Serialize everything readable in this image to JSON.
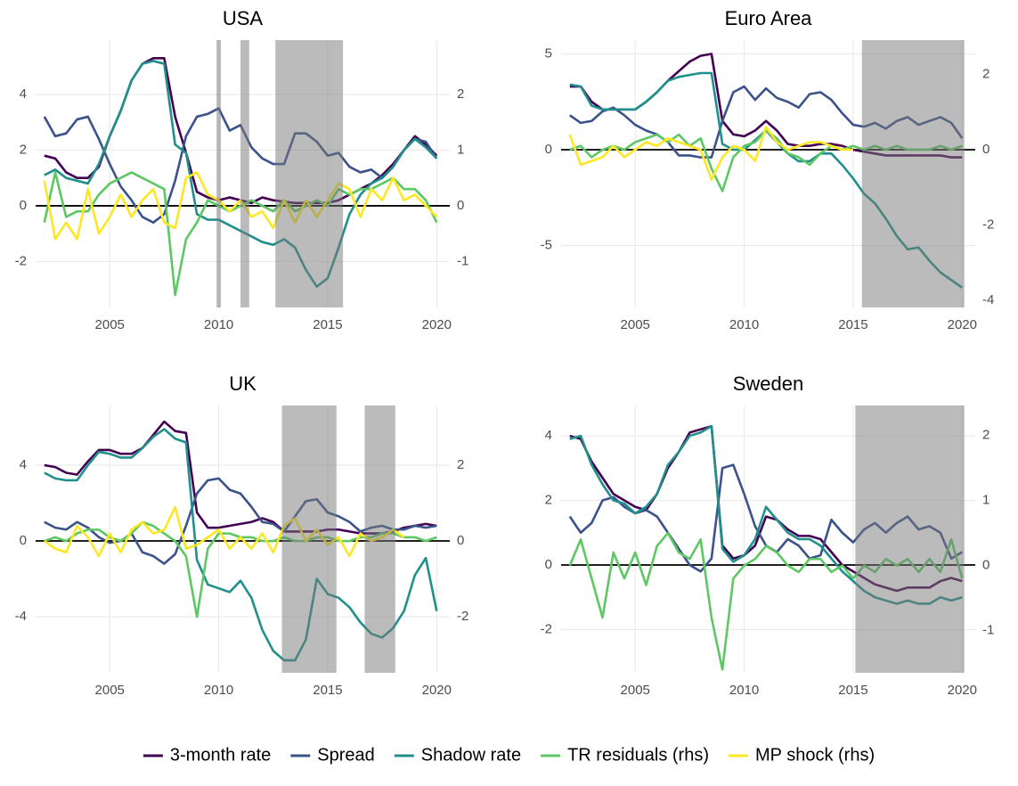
{
  "chart_data": [
    {
      "type": "line",
      "title": "USA",
      "x": [
        2002,
        2002.5,
        2003,
        2003.5,
        2004,
        2004.5,
        2005,
        2005.5,
        2006,
        2006.5,
        2007,
        2007.5,
        2008,
        2008.5,
        2009,
        2009.5,
        2010,
        2010.5,
        2011,
        2011.5,
        2012,
        2012.5,
        2013,
        2013.5,
        2014,
        2014.5,
        2015,
        2015.5,
        2016,
        2016.5,
        2017,
        2017.5,
        2018,
        2018.5,
        2019,
        2019.5,
        2020
      ],
      "xlim": [
        2001.6,
        2020.6
      ],
      "xticks": [
        2005,
        2010,
        2015,
        2020
      ],
      "ylim": [
        -3.65,
        5.95
      ],
      "yticks": [
        -2,
        0,
        2,
        4
      ],
      "y2lim": [
        -1.825,
        2.975
      ],
      "y2ticks": [
        -1,
        0,
        1,
        2
      ],
      "shaded": [
        [
          2009.9,
          2010.1
        ],
        [
          2011.0,
          2011.4
        ],
        [
          2012.6,
          2015.7
        ]
      ],
      "series": [
        {
          "name": "3-month rate",
          "color": "#440154",
          "values": [
            1.8,
            1.7,
            1.2,
            1.0,
            1.0,
            1.4,
            2.5,
            3.4,
            4.5,
            5.1,
            5.3,
            5.3,
            3.2,
            1.9,
            0.5,
            0.3,
            0.2,
            0.3,
            0.2,
            0.1,
            0.3,
            0.2,
            0.15,
            0.1,
            0.1,
            0.1,
            0.1,
            0.2,
            0.4,
            0.6,
            0.8,
            1.1,
            1.5,
            2.0,
            2.5,
            2.2,
            1.8
          ]
        },
        {
          "name": "Spread",
          "color": "#3b528b",
          "values": [
            3.2,
            2.5,
            2.6,
            3.1,
            3.2,
            2.4,
            1.5,
            0.7,
            0.2,
            -0.4,
            -0.6,
            -0.3,
            0.9,
            2.5,
            3.2,
            3.3,
            3.5,
            2.7,
            2.9,
            2.1,
            1.7,
            1.5,
            1.5,
            2.6,
            2.6,
            2.3,
            1.8,
            1.9,
            1.4,
            1.2,
            1.3,
            1.0,
            1.4,
            2.0,
            2.4,
            2.3,
            1.7
          ]
        },
        {
          "name": "Shadow rate",
          "color": "#21908c",
          "values": [
            1.1,
            1.3,
            1.0,
            0.9,
            0.8,
            1.5,
            2.5,
            3.4,
            4.5,
            5.1,
            5.2,
            5.1,
            2.2,
            1.9,
            -0.3,
            -0.5,
            -0.5,
            -0.7,
            -0.9,
            -1.1,
            -1.3,
            -1.4,
            -1.2,
            -1.5,
            -2.3,
            -2.9,
            -2.6,
            -1.5,
            -0.3,
            0.4,
            0.8,
            1.0,
            1.4,
            2.0,
            2.4,
            2.1,
            1.7
          ]
        },
        {
          "name": "TR residuals (rhs)",
          "color": "#5dc863",
          "axis": "y2",
          "values": [
            -0.3,
            0.6,
            -0.2,
            -0.1,
            -0.1,
            0.2,
            0.4,
            0.5,
            0.6,
            0.5,
            0.4,
            0.3,
            -1.6,
            -0.6,
            -0.3,
            0.1,
            0.0,
            -0.1,
            0.0,
            0.1,
            0.0,
            -0.1,
            0.1,
            -0.1,
            0.0,
            0.1,
            0.0,
            0.3,
            0.2,
            0.3,
            0.3,
            0.4,
            0.5,
            0.3,
            0.3,
            0.1,
            -0.3
          ]
        },
        {
          "name": "MP shock (rhs)",
          "color": "#fde725",
          "axis": "y2",
          "values": [
            0.45,
            -0.6,
            -0.3,
            -0.6,
            0.3,
            -0.5,
            -0.2,
            0.2,
            -0.2,
            0.1,
            0.3,
            -0.3,
            -0.4,
            0.5,
            0.6,
            0.2,
            0.1,
            -0.1,
            0.1,
            -0.2,
            -0.1,
            -0.4,
            0.1,
            -0.3,
            0.1,
            -0.2,
            0.1,
            0.4,
            0.3,
            -0.2,
            0.3,
            0.1,
            0.5,
            0.1,
            0.2,
            0.0,
            -0.2
          ]
        }
      ]
    },
    {
      "type": "line",
      "title": "Euro Area",
      "x": [
        2002,
        2002.5,
        2003,
        2003.5,
        2004,
        2004.5,
        2005,
        2005.5,
        2006,
        2006.5,
        2007,
        2007.5,
        2008,
        2008.5,
        2009,
        2009.5,
        2010,
        2010.5,
        2011,
        2011.5,
        2012,
        2012.5,
        2013,
        2013.5,
        2014,
        2014.5,
        2015,
        2015.5,
        2016,
        2016.5,
        2017,
        2017.5,
        2018,
        2018.5,
        2019,
        2019.5,
        2020
      ],
      "xlim": [
        2001.6,
        2020.6
      ],
      "xticks": [
        2005,
        2010,
        2015,
        2020
      ],
      "ylim": [
        -8.23,
        5.72
      ],
      "yticks": [
        -5,
        0,
        5
      ],
      "y2lim": [
        -4.19,
        2.91
      ],
      "y2ticks": [
        -4,
        -2,
        0,
        2
      ],
      "shaded": [
        [
          2015.4,
          2020.1
        ]
      ],
      "series": [
        {
          "name": "3-month rate",
          "color": "#440154",
          "values": [
            3.3,
            3.3,
            2.5,
            2.1,
            2.1,
            2.1,
            2.1,
            2.5,
            3.0,
            3.6,
            4.1,
            4.6,
            4.9,
            5.0,
            1.5,
            0.8,
            0.7,
            1.0,
            1.5,
            1.0,
            0.3,
            0.2,
            0.2,
            0.3,
            0.3,
            0.2,
            0.0,
            -0.1,
            -0.2,
            -0.3,
            -0.3,
            -0.3,
            -0.3,
            -0.3,
            -0.3,
            -0.4,
            -0.4
          ]
        },
        {
          "name": "Spread",
          "color": "#3b528b",
          "values": [
            1.8,
            1.4,
            1.5,
            2.0,
            2.2,
            1.8,
            1.3,
            1.0,
            0.8,
            0.4,
            -0.3,
            -0.3,
            -0.4,
            -0.4,
            1.5,
            3.0,
            3.3,
            2.6,
            3.2,
            2.7,
            2.5,
            2.2,
            2.9,
            3.0,
            2.6,
            1.9,
            1.3,
            1.2,
            1.4,
            1.1,
            1.5,
            1.7,
            1.3,
            1.5,
            1.7,
            1.4,
            0.6
          ]
        },
        {
          "name": "Shadow rate",
          "color": "#21908c",
          "values": [
            3.4,
            3.3,
            2.3,
            2.1,
            2.1,
            2.1,
            2.1,
            2.5,
            3.0,
            3.6,
            3.8,
            3.9,
            4.0,
            4.0,
            0.3,
            0.0,
            0.0,
            0.5,
            1.0,
            0.4,
            -0.2,
            -0.6,
            -0.6,
            -0.2,
            -0.2,
            -0.8,
            -1.5,
            -2.3,
            -2.8,
            -3.6,
            -4.5,
            -5.2,
            -5.1,
            -5.8,
            -6.4,
            -6.8,
            -7.2
          ]
        },
        {
          "name": "TR residuals (rhs)",
          "color": "#5dc863",
          "axis": "y2",
          "values": [
            0.0,
            0.1,
            -0.2,
            0.0,
            0.1,
            0.0,
            0.2,
            0.3,
            0.4,
            0.2,
            0.4,
            0.1,
            0.3,
            -0.5,
            -1.1,
            -0.2,
            0.1,
            0.2,
            0.5,
            0.3,
            -0.1,
            -0.2,
            -0.4,
            -0.1,
            0.1,
            0.0,
            0.1,
            0.0,
            0.1,
            0.0,
            0.1,
            0.0,
            0.0,
            0.0,
            0.1,
            0.0,
            0.1
          ]
        },
        {
          "name": "MP shock (rhs)",
          "color": "#fde725",
          "axis": "y2",
          "values": [
            0.4,
            -0.4,
            -0.3,
            -0.2,
            0.1,
            -0.2,
            0.0,
            0.2,
            0.1,
            0.3,
            0.2,
            0.1,
            0.0,
            -0.8,
            -0.2,
            0.1,
            0.0,
            -0.3,
            0.6,
            0.2,
            0.0,
            0.1,
            0.2,
            0.2,
            0.1,
            0.0,
            0.0,
            null,
            null,
            null,
            null,
            null,
            null,
            null,
            null,
            null,
            null
          ]
        }
      ]
    },
    {
      "type": "line",
      "title": "UK",
      "x": [
        2002,
        2002.5,
        2003,
        2003.5,
        2004,
        2004.5,
        2005,
        2005.5,
        2006,
        2006.5,
        2007,
        2007.5,
        2008,
        2008.5,
        2009,
        2009.5,
        2010,
        2010.5,
        2011,
        2011.5,
        2012,
        2012.5,
        2013,
        2013.5,
        2014,
        2014.5,
        2015,
        2015.5,
        2016,
        2016.5,
        2017,
        2017.5,
        2018,
        2018.5,
        2019,
        2019.5,
        2020
      ],
      "xlim": [
        2001.6,
        2020.6
      ],
      "xticks": [
        2005,
        2010,
        2015,
        2020
      ],
      "ylim": [
        -6.96,
        7.15
      ],
      "yticks": [
        -4,
        0,
        4
      ],
      "y2lim": [
        -3.48,
        3.58
      ],
      "y2ticks": [
        -2,
        0,
        2
      ],
      "shaded": [
        [
          2012.9,
          2015.4
        ],
        [
          2016.7,
          2018.1
        ]
      ],
      "series": [
        {
          "name": "3-month rate",
          "color": "#440154",
          "values": [
            4.0,
            3.9,
            3.6,
            3.5,
            4.2,
            4.8,
            4.8,
            4.6,
            4.6,
            4.9,
            5.6,
            6.3,
            5.8,
            5.7,
            1.5,
            0.7,
            0.7,
            0.8,
            0.9,
            1.0,
            1.2,
            1.0,
            0.5,
            0.5,
            0.5,
            0.5,
            0.6,
            0.6,
            0.5,
            0.4,
            0.4,
            0.4,
            0.5,
            0.7,
            0.8,
            0.9,
            0.8
          ]
        },
        {
          "name": "Spread",
          "color": "#3b528b",
          "values": [
            1.0,
            0.7,
            0.6,
            1.0,
            0.7,
            0.2,
            -0.1,
            0.0,
            0.4,
            -0.6,
            -0.8,
            -1.2,
            -0.7,
            0.8,
            2.5,
            3.2,
            3.3,
            2.7,
            2.5,
            1.8,
            1.0,
            0.9,
            0.5,
            1.3,
            2.1,
            2.2,
            1.5,
            1.3,
            1.0,
            0.5,
            0.7,
            0.8,
            0.6,
            0.6,
            0.8,
            0.7,
            0.8
          ]
        },
        {
          "name": "Shadow rate",
          "color": "#21908c",
          "values": [
            3.6,
            3.3,
            3.2,
            3.2,
            4.0,
            4.7,
            4.6,
            4.4,
            4.4,
            4.9,
            5.5,
            5.9,
            5.4,
            5.2,
            -1.0,
            -2.3,
            -2.5,
            -2.7,
            -2.1,
            -3.0,
            -4.7,
            -5.8,
            -6.3,
            -6.3,
            -5.2,
            -2.0,
            -2.8,
            -3.0,
            -3.5,
            -4.3,
            -4.9,
            -5.1,
            -4.6,
            -3.7,
            -1.8,
            -0.9,
            -3.7
          ]
        },
        {
          "name": "TR residuals (rhs)",
          "color": "#5dc863",
          "axis": "y2",
          "values": [
            0.0,
            0.1,
            0.0,
            0.2,
            0.3,
            0.3,
            0.1,
            0.0,
            0.2,
            0.5,
            0.4,
            0.2,
            0.0,
            -0.4,
            -2.0,
            -0.2,
            0.2,
            0.2,
            0.1,
            0.1,
            0.0,
            0.0,
            0.1,
            0.0,
            0.0,
            0.1,
            0.1,
            0.0,
            0.0,
            0.1,
            0.1,
            0.2,
            0.2,
            0.1,
            0.1,
            0.0,
            0.1
          ]
        },
        {
          "name": "MP shock (rhs)",
          "color": "#fde725",
          "axis": "y2",
          "values": [
            0.0,
            -0.2,
            -0.3,
            0.4,
            0.1,
            -0.4,
            0.2,
            -0.3,
            0.3,
            0.5,
            0.2,
            0.3,
            0.9,
            -0.2,
            -0.1,
            0.1,
            0.3,
            -0.2,
            0.1,
            -0.2,
            0.2,
            -0.3,
            0.4,
            0.6,
            0.0,
            0.3,
            -0.1,
            0.1,
            -0.4,
            0.2,
            0.0,
            0.1,
            0.3,
            0.1,
            null,
            null,
            null
          ]
        }
      ]
    },
    {
      "type": "line",
      "title": "Sweden",
      "x": [
        2002,
        2002.5,
        2003,
        2003.5,
        2004,
        2004.5,
        2005,
        2005.5,
        2006,
        2006.5,
        2007,
        2007.5,
        2008,
        2008.5,
        2009,
        2009.5,
        2010,
        2010.5,
        2011,
        2011.5,
        2012,
        2012.5,
        2013,
        2013.5,
        2014,
        2014.5,
        2015,
        2015.5,
        2016,
        2016.5,
        2017,
        2017.5,
        2018,
        2018.5,
        2019,
        2019.5,
        2020
      ],
      "xlim": [
        2001.6,
        2020.6
      ],
      "xticks": [
        2005,
        2010,
        2015,
        2020
      ],
      "ylim": [
        -3.34,
        4.94
      ],
      "yticks": [
        -2,
        0,
        2,
        4
      ],
      "y2lim": [
        -1.65,
        2.46
      ],
      "y2ticks": [
        -1,
        0,
        1,
        2
      ],
      "shaded": [
        [
          2015.1,
          2020.1
        ]
      ],
      "series": [
        {
          "name": "3-month rate",
          "color": "#440154",
          "values": [
            4.0,
            3.9,
            3.2,
            2.7,
            2.2,
            2.0,
            1.8,
            1.7,
            2.2,
            3.0,
            3.5,
            4.1,
            4.2,
            4.3,
            0.6,
            0.2,
            0.3,
            0.6,
            1.5,
            1.4,
            1.1,
            0.9,
            0.9,
            0.8,
            0.4,
            0.0,
            -0.2,
            -0.4,
            -0.6,
            -0.7,
            -0.8,
            -0.7,
            -0.7,
            -0.7,
            -0.5,
            -0.4,
            -0.5
          ]
        },
        {
          "name": "Spread",
          "color": "#3b528b",
          "values": [
            1.5,
            1.0,
            1.3,
            2.0,
            2.1,
            1.8,
            1.6,
            1.7,
            1.5,
            1.0,
            0.5,
            0.0,
            -0.2,
            0.2,
            3.0,
            3.1,
            2.2,
            1.2,
            0.6,
            0.4,
            0.8,
            0.6,
            0.2,
            0.3,
            1.4,
            1.0,
            0.7,
            1.1,
            1.3,
            1.0,
            1.3,
            1.5,
            1.1,
            1.2,
            1.0,
            0.2,
            0.4
          ]
        },
        {
          "name": "Shadow rate",
          "color": "#21908c",
          "values": [
            3.9,
            4.0,
            3.1,
            2.5,
            2.0,
            1.9,
            1.6,
            1.8,
            2.2,
            3.1,
            3.5,
            4.0,
            4.1,
            4.3,
            0.5,
            0.1,
            0.3,
            0.8,
            1.8,
            1.4,
            1.0,
            0.8,
            0.8,
            0.6,
            0.2,
            -0.2,
            -0.5,
            -0.8,
            -1.0,
            -1.1,
            -1.2,
            -1.1,
            -1.2,
            -1.2,
            -1.0,
            -1.1,
            -1.0
          ]
        },
        {
          "name": "TR residuals (rhs)",
          "color": "#5dc863",
          "axis": "y2",
          "values": [
            0.0,
            0.4,
            -0.2,
            -0.8,
            0.2,
            -0.2,
            0.2,
            -0.3,
            0.3,
            0.5,
            0.2,
            0.1,
            0.4,
            -0.8,
            -1.6,
            -0.2,
            0.0,
            0.1,
            0.3,
            0.2,
            0.0,
            -0.1,
            0.1,
            0.1,
            -0.1,
            0.0,
            -0.2,
            0.0,
            -0.1,
            0.1,
            0.0,
            0.1,
            -0.1,
            0.1,
            -0.1,
            0.4,
            -0.2
          ]
        }
      ]
    }
  ]
}
